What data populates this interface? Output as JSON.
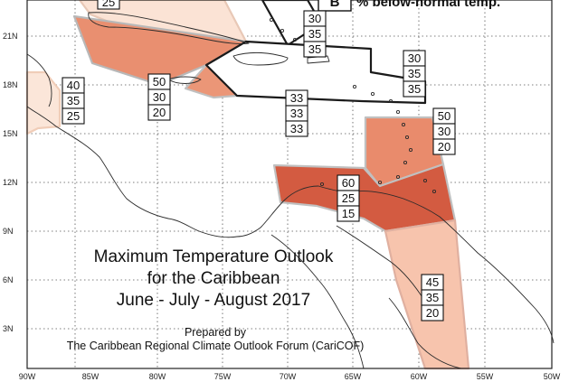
{
  "title_lines": [
    "Maximum Temperature Outlook",
    "for the Caribbean",
    "June - July - August 2017"
  ],
  "prepared_lines": [
    "Prepared by",
    "The Caribbean Regional Climate Outlook Forum (CariCOF)"
  ],
  "legend": {
    "letter": "B",
    "text": "% below-normal temp."
  },
  "axes": {
    "longitude_labels": [
      "90W",
      "85W",
      "80W",
      "75W",
      "70W",
      "65W",
      "60W",
      "55W",
      "50W"
    ],
    "latitude_labels": [
      "21N",
      "18N",
      "15N",
      "12N",
      "9N",
      "6N",
      "3N"
    ]
  },
  "colors": {
    "light_peach": "#f9dccb",
    "peach": "#f5b79a",
    "salmon": "#e98b6c",
    "red": "#d35b41",
    "outline": "#1a1a1a"
  },
  "forecast_boxes": [
    {
      "name": "prob-box-north-bahamas",
      "values": [
        "25"
      ]
    },
    {
      "name": "prob-box-hispaniola-north",
      "values": [
        "30",
        "35",
        "35"
      ]
    },
    {
      "name": "prob-box-lesser-antilles-north",
      "values": [
        "30",
        "35",
        "35"
      ]
    },
    {
      "name": "prob-box-belize",
      "values": [
        "40",
        "35",
        "25"
      ]
    },
    {
      "name": "prob-box-jamaica",
      "values": [
        "50",
        "30",
        "20"
      ]
    },
    {
      "name": "prob-box-puerto-rico-south",
      "values": [
        "33",
        "33",
        "33"
      ]
    },
    {
      "name": "prob-box-windward-islands",
      "values": [
        "50",
        "30",
        "20"
      ]
    },
    {
      "name": "prob-box-southern-caribbean",
      "values": [
        "60",
        "25",
        "15"
      ]
    },
    {
      "name": "prob-box-guianas",
      "values": [
        "45",
        "35",
        "20"
      ]
    }
  ]
}
